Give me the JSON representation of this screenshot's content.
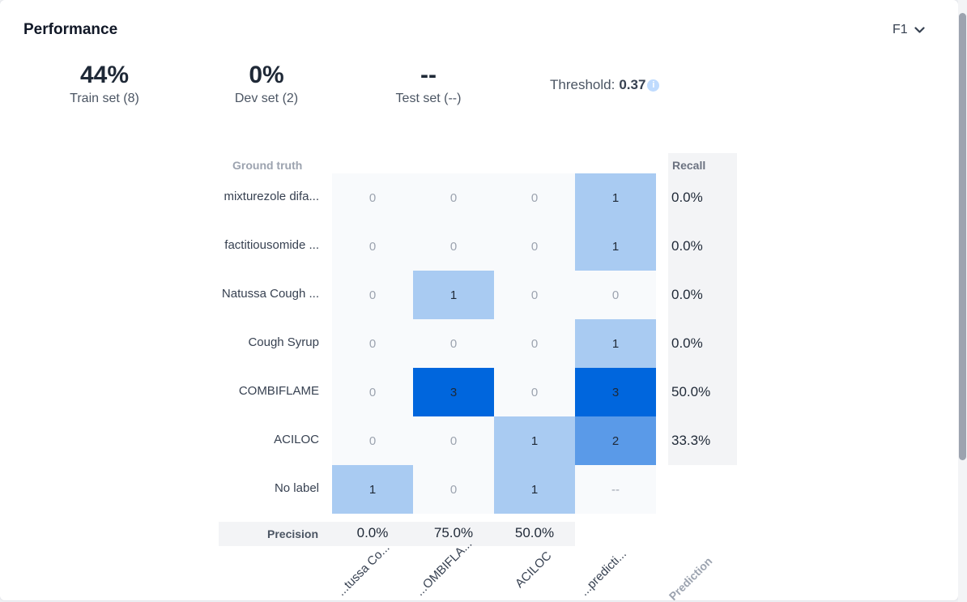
{
  "panel": {
    "title": "Performance",
    "metric_select": "F1"
  },
  "stats": [
    {
      "value": "44%",
      "label": "Train set (8)"
    },
    {
      "value": "0%",
      "label": "Dev set (2)"
    },
    {
      "value": "--",
      "label": "Test set (--)"
    }
  ],
  "threshold": {
    "label": "Threshold:",
    "value": "0.37",
    "info_icon": "info-icon"
  },
  "matrix": {
    "ground_truth_header": "Ground truth",
    "recall_header": "Recall",
    "precision_label": "Precision",
    "prediction_axis": "Prediction",
    "rows": [
      {
        "label": "mixturezole difa...",
        "cells": [
          "0",
          "0",
          "0",
          "1"
        ],
        "recall": "0.0%"
      },
      {
        "label": "factitiousomide ...",
        "cells": [
          "0",
          "0",
          "0",
          "1"
        ],
        "recall": "0.0%"
      },
      {
        "label": "Natussa Cough ...",
        "cells": [
          "0",
          "1",
          "0",
          "0"
        ],
        "recall": "0.0%"
      },
      {
        "label": "Cough Syrup",
        "cells": [
          "0",
          "0",
          "0",
          "1"
        ],
        "recall": "0.0%"
      },
      {
        "label": "COMBIFLAME",
        "cells": [
          "0",
          "3",
          "0",
          "3"
        ],
        "recall": "50.0%"
      },
      {
        "label": "ACILOC",
        "cells": [
          "0",
          "0",
          "1",
          "2"
        ],
        "recall": "33.3%"
      },
      {
        "label": "No label",
        "cells": [
          "1",
          "0",
          "1",
          "--"
        ],
        "recall": ""
      }
    ],
    "columns": [
      "...tussa Co...",
      "...OMBIFLA...",
      "ACILOC",
      "...predicti..."
    ],
    "precision": [
      "0.0%",
      "75.0%",
      "50.0%"
    ]
  },
  "colors": {
    "cell_empty": "#f8fafc",
    "cell_low": "#a9cbf2",
    "cell_mid": "#5a9ae8",
    "cell_high": "#0066dd"
  }
}
